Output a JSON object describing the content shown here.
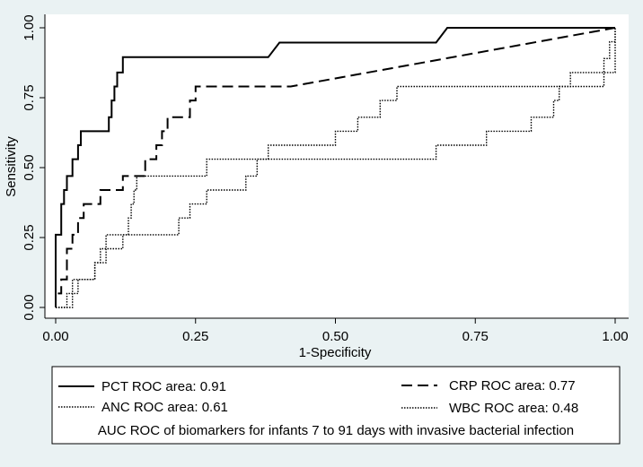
{
  "chart_data": {
    "type": "line",
    "xlabel": "1-Specificity",
    "ylabel": "Sensitivity",
    "xlim": [
      0,
      1
    ],
    "ylim": [
      0,
      1
    ],
    "x_ticks": [
      "0.00",
      "0.25",
      "0.50",
      "0.75",
      "1.00"
    ],
    "y_ticks": [
      "0.00",
      "0.25",
      "0.50",
      "0.75",
      "1.00"
    ],
    "grid": false,
    "legend_placement": "bottom",
    "legend_note": "AUC ROC of biomarkers for infants 7 to 91 days with invasive bacterial infection",
    "series": [
      {
        "name": "PCT ROC area: 0.91",
        "style": "solid",
        "points": [
          [
            0,
            0
          ],
          [
            0,
            0.26
          ],
          [
            0.01,
            0.26
          ],
          [
            0.01,
            0.37
          ],
          [
            0.015,
            0.37
          ],
          [
            0.015,
            0.42
          ],
          [
            0.02,
            0.42
          ],
          [
            0.02,
            0.47
          ],
          [
            0.03,
            0.47
          ],
          [
            0.03,
            0.53
          ],
          [
            0.04,
            0.53
          ],
          [
            0.04,
            0.58
          ],
          [
            0.045,
            0.58
          ],
          [
            0.045,
            0.63
          ],
          [
            0.095,
            0.63
          ],
          [
            0.095,
            0.68
          ],
          [
            0.1,
            0.68
          ],
          [
            0.1,
            0.74
          ],
          [
            0.105,
            0.74
          ],
          [
            0.105,
            0.79
          ],
          [
            0.11,
            0.79
          ],
          [
            0.11,
            0.84
          ],
          [
            0.12,
            0.84
          ],
          [
            0.12,
            0.895
          ],
          [
            0.38,
            0.895
          ],
          [
            0.4,
            0.947
          ],
          [
            0.68,
            0.947
          ],
          [
            0.7,
            1.0
          ],
          [
            1.0,
            1.0
          ]
        ]
      },
      {
        "name": "CRP ROC area: 0.77",
        "style": "dashed",
        "points": [
          [
            0,
            0
          ],
          [
            0,
            0.05
          ],
          [
            0.01,
            0.05
          ],
          [
            0.01,
            0.1
          ],
          [
            0.02,
            0.1
          ],
          [
            0.02,
            0.21
          ],
          [
            0.03,
            0.21
          ],
          [
            0.03,
            0.26
          ],
          [
            0.04,
            0.26
          ],
          [
            0.04,
            0.32
          ],
          [
            0.05,
            0.32
          ],
          [
            0.05,
            0.37
          ],
          [
            0.08,
            0.37
          ],
          [
            0.08,
            0.42
          ],
          [
            0.12,
            0.42
          ],
          [
            0.12,
            0.47
          ],
          [
            0.16,
            0.47
          ],
          [
            0.16,
            0.53
          ],
          [
            0.18,
            0.53
          ],
          [
            0.18,
            0.58
          ],
          [
            0.19,
            0.58
          ],
          [
            0.19,
            0.63
          ],
          [
            0.2,
            0.63
          ],
          [
            0.2,
            0.68
          ],
          [
            0.24,
            0.68
          ],
          [
            0.24,
            0.74
          ],
          [
            0.25,
            0.74
          ],
          [
            0.25,
            0.79
          ],
          [
            0.42,
            0.79
          ],
          [
            1.0,
            1.0
          ]
        ]
      },
      {
        "name": "ANC ROC area: 0.61",
        "style": "dotted",
        "points": [
          [
            0,
            0
          ],
          [
            0.02,
            0
          ],
          [
            0.02,
            0.05
          ],
          [
            0.04,
            0.05
          ],
          [
            0.04,
            0.1
          ],
          [
            0.07,
            0.1
          ],
          [
            0.07,
            0.16
          ],
          [
            0.09,
            0.16
          ],
          [
            0.09,
            0.21
          ],
          [
            0.12,
            0.21
          ],
          [
            0.12,
            0.26
          ],
          [
            0.13,
            0.26
          ],
          [
            0.13,
            0.32
          ],
          [
            0.135,
            0.32
          ],
          [
            0.135,
            0.37
          ],
          [
            0.14,
            0.37
          ],
          [
            0.14,
            0.42
          ],
          [
            0.145,
            0.42
          ],
          [
            0.145,
            0.47
          ],
          [
            0.27,
            0.47
          ],
          [
            0.27,
            0.53
          ],
          [
            0.38,
            0.53
          ],
          [
            0.38,
            0.58
          ],
          [
            0.5,
            0.58
          ],
          [
            0.5,
            0.63
          ],
          [
            0.54,
            0.63
          ],
          [
            0.54,
            0.68
          ],
          [
            0.58,
            0.68
          ],
          [
            0.58,
            0.74
          ],
          [
            0.61,
            0.74
          ],
          [
            0.61,
            0.79
          ],
          [
            0.92,
            0.79
          ],
          [
            0.92,
            0.84
          ],
          [
            0.98,
            0.84
          ],
          [
            0.98,
            0.89
          ],
          [
            0.99,
            0.89
          ],
          [
            0.99,
            0.95
          ],
          [
            1.0,
            0.95
          ],
          [
            1.0,
            1.0
          ]
        ]
      },
      {
        "name": "WBC ROC area: 0.48",
        "style": "dotted",
        "points": [
          [
            0,
            0
          ],
          [
            0.03,
            0
          ],
          [
            0.03,
            0.1
          ],
          [
            0.07,
            0.1
          ],
          [
            0.07,
            0.16
          ],
          [
            0.08,
            0.16
          ],
          [
            0.08,
            0.21
          ],
          [
            0.09,
            0.21
          ],
          [
            0.09,
            0.26
          ],
          [
            0.22,
            0.26
          ],
          [
            0.22,
            0.32
          ],
          [
            0.24,
            0.32
          ],
          [
            0.24,
            0.37
          ],
          [
            0.27,
            0.37
          ],
          [
            0.27,
            0.42
          ],
          [
            0.34,
            0.42
          ],
          [
            0.34,
            0.47
          ],
          [
            0.36,
            0.47
          ],
          [
            0.36,
            0.53
          ],
          [
            0.68,
            0.53
          ],
          [
            0.68,
            0.58
          ],
          [
            0.77,
            0.58
          ],
          [
            0.77,
            0.63
          ],
          [
            0.85,
            0.63
          ],
          [
            0.85,
            0.68
          ],
          [
            0.89,
            0.68
          ],
          [
            0.89,
            0.74
          ],
          [
            0.9,
            0.74
          ],
          [
            0.9,
            0.79
          ],
          [
            0.98,
            0.79
          ],
          [
            0.98,
            0.84
          ],
          [
            1.0,
            0.84
          ],
          [
            1.0,
            1.0
          ]
        ]
      }
    ]
  }
}
